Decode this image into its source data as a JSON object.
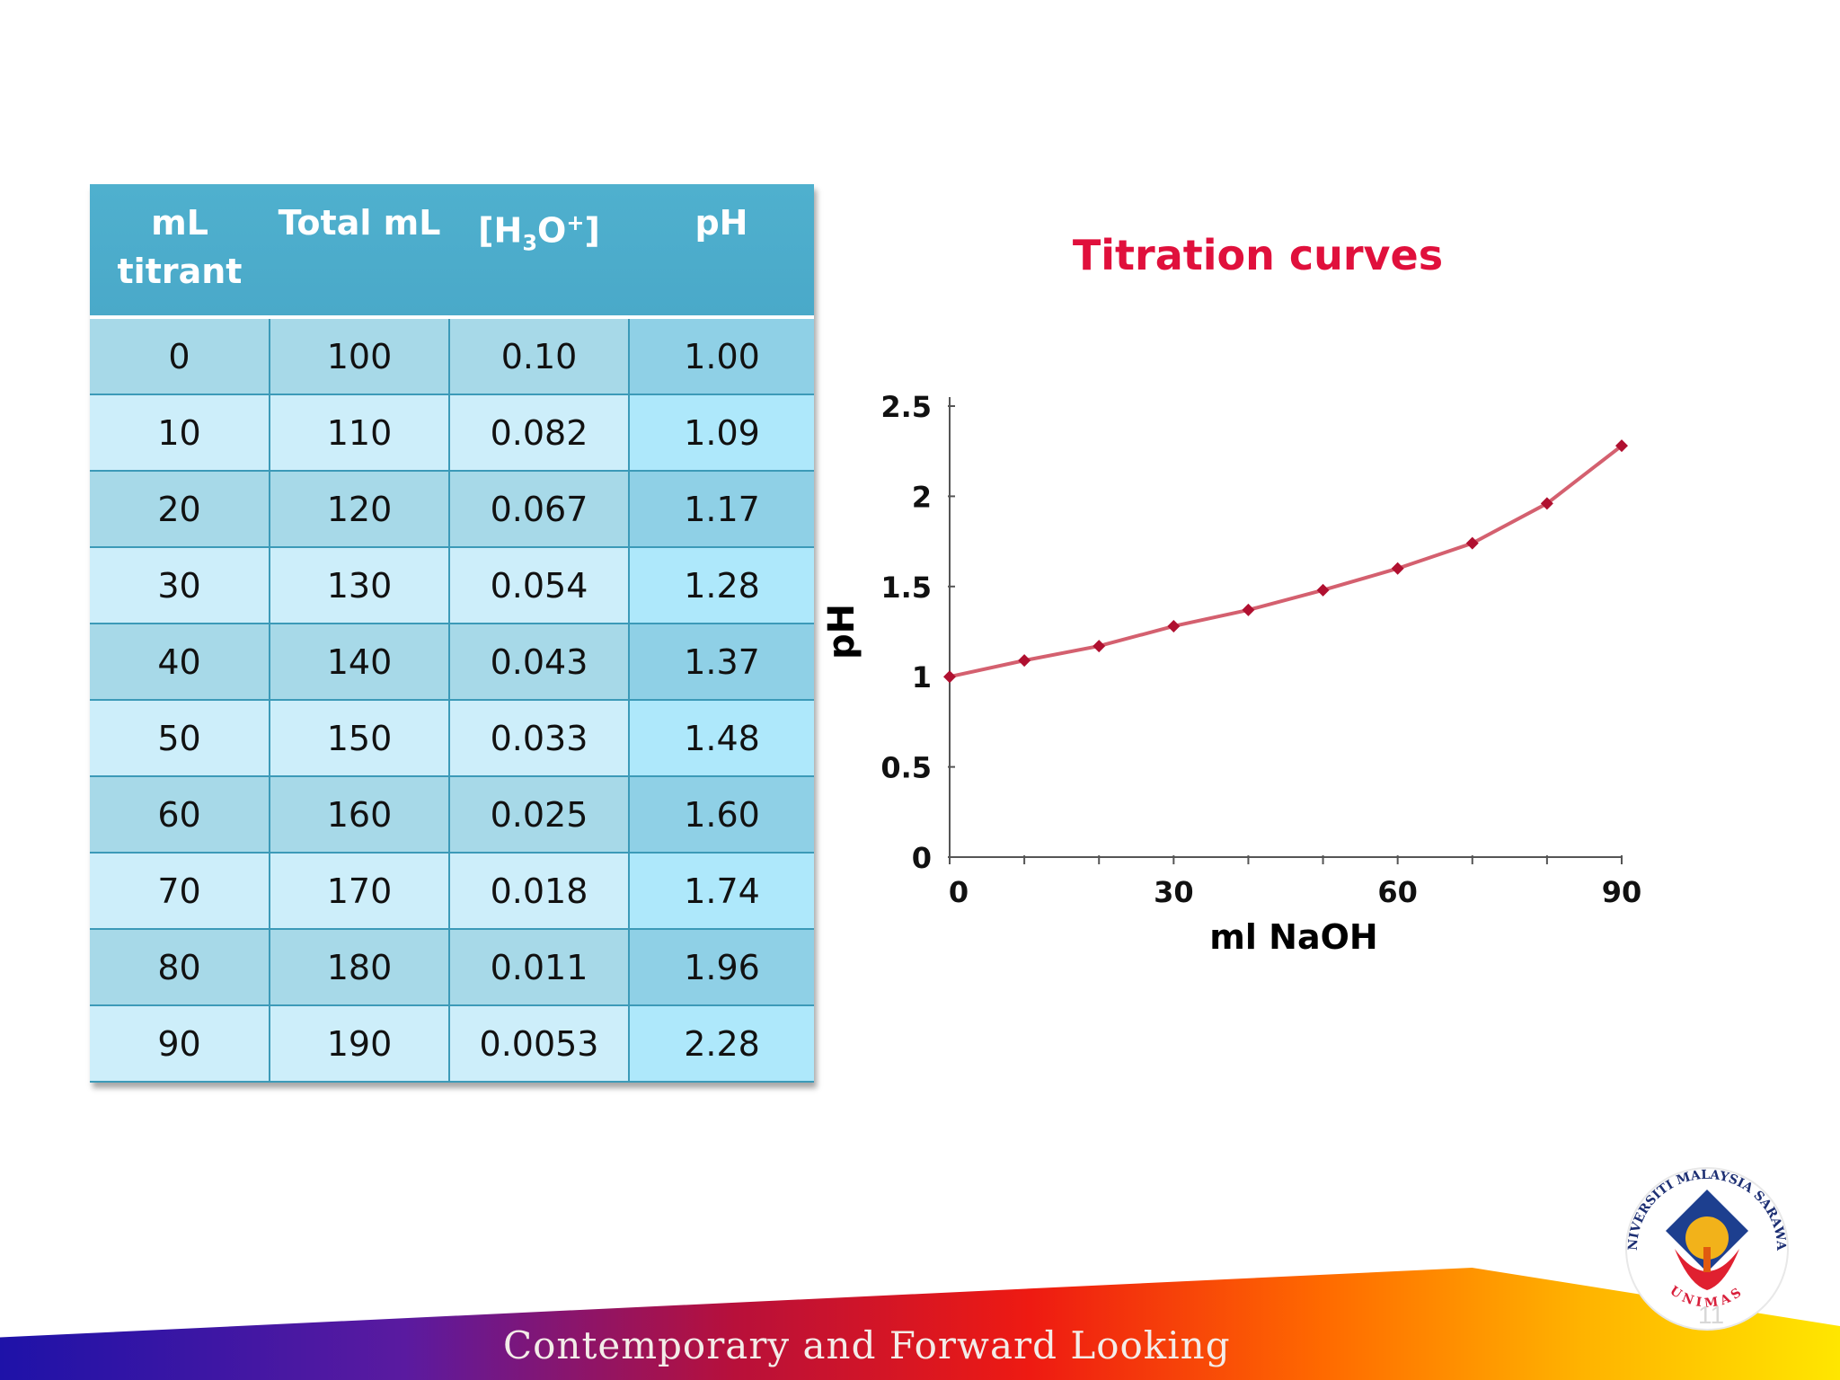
{
  "table": {
    "headers": {
      "ml_titrant": "mL titrant",
      "total_ml": "Total mL",
      "h3o": {
        "prefix": "[H",
        "sub": "3",
        "mid": "O",
        "sup": "+",
        "suffix": "]"
      },
      "ph": "pH"
    },
    "rows": [
      [
        "0",
        "100",
        "0.10",
        "1.00"
      ],
      [
        "10",
        "110",
        "0.082",
        "1.09"
      ],
      [
        "20",
        "120",
        "0.067",
        "1.17"
      ],
      [
        "30",
        "130",
        "0.054",
        "1.28"
      ],
      [
        "40",
        "140",
        "0.043",
        "1.37"
      ],
      [
        "50",
        "150",
        "0.033",
        "1.48"
      ],
      [
        "60",
        "160",
        "0.025",
        "1.60"
      ],
      [
        "70",
        "170",
        "0.018",
        "1.74"
      ],
      [
        "80",
        "180",
        "0.011",
        "1.96"
      ],
      [
        "90",
        "190",
        "0.0053",
        "2.28"
      ]
    ]
  },
  "chart_data": {
    "type": "line",
    "title": "Titration curves",
    "xlabel": "ml NaOH",
    "ylabel": "pH",
    "x": [
      0,
      10,
      20,
      30,
      40,
      50,
      60,
      70,
      80,
      90
    ],
    "series": [
      {
        "values": [
          1.0,
          1.09,
          1.17,
          1.28,
          1.37,
          1.48,
          1.6,
          1.74,
          1.96,
          2.28
        ]
      }
    ],
    "xlim": [
      0,
      90
    ],
    "ylim": [
      0,
      2.5
    ],
    "x_ticks": [
      0,
      30,
      60,
      90
    ],
    "x_minor_ticks": [
      10,
      20,
      40,
      50,
      70,
      80
    ],
    "y_ticks": [
      0,
      0.5,
      1,
      1.5,
      2,
      2.5
    ],
    "grid": false,
    "colors": {
      "title": "#e0103c",
      "line": "#d4606f",
      "marker": "#b01030",
      "axis": "#555555"
    }
  },
  "footer": {
    "tagline": "Contemporary and Forward Looking",
    "page_number": "11",
    "logo": {
      "ring_top": "UNIVERSITI MALAYSIA SARAWAK",
      "ring_bottom": "UNIMAS"
    }
  }
}
